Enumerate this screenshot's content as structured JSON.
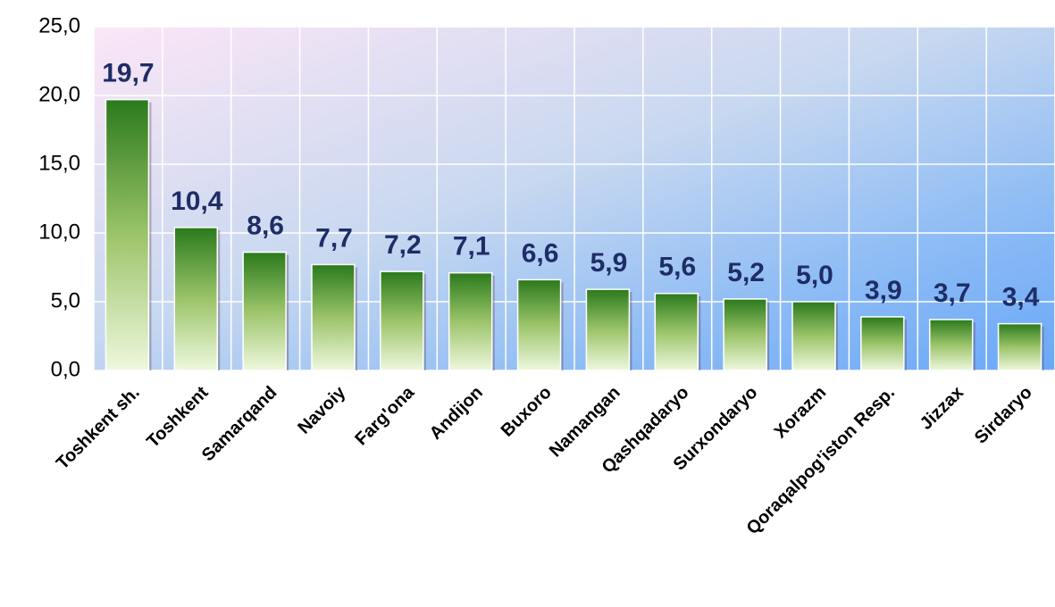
{
  "chart_data": {
    "type": "bar",
    "categories": [
      "Toshkent sh.",
      "Toshkent",
      "Samarqand",
      "Navoiy",
      "Farg'ona",
      "Andijon",
      "Buxoro",
      "Namangan",
      "Qashqadaryo",
      "Surxondaryo",
      "Xorazm",
      "Qoraqalpog'iston Resp.",
      "Jizzax",
      "Sirdaryo"
    ],
    "values": [
      19.7,
      10.4,
      8.6,
      7.7,
      7.2,
      7.1,
      6.6,
      5.9,
      5.6,
      5.2,
      5.0,
      3.9,
      3.7,
      3.4
    ],
    "value_labels": [
      "19,7",
      "10,4",
      "8,6",
      "7,7",
      "7,2",
      "7,1",
      "6,6",
      "5,9",
      "5,6",
      "5,2",
      "5,0",
      "3,9",
      "3,7",
      "3,4"
    ],
    "color": "#2f7d1f",
    "ylim": [
      0,
      25
    ],
    "yticks": [
      {
        "value": 0,
        "label": "0,0"
      },
      {
        "value": 5,
        "label": "5,0"
      },
      {
        "value": 10,
        "label": "10,0"
      },
      {
        "value": 15,
        "label": "15,0"
      },
      {
        "value": 20,
        "label": "20,0"
      },
      {
        "value": 25,
        "label": "25,0"
      }
    ],
    "grid": true
  }
}
